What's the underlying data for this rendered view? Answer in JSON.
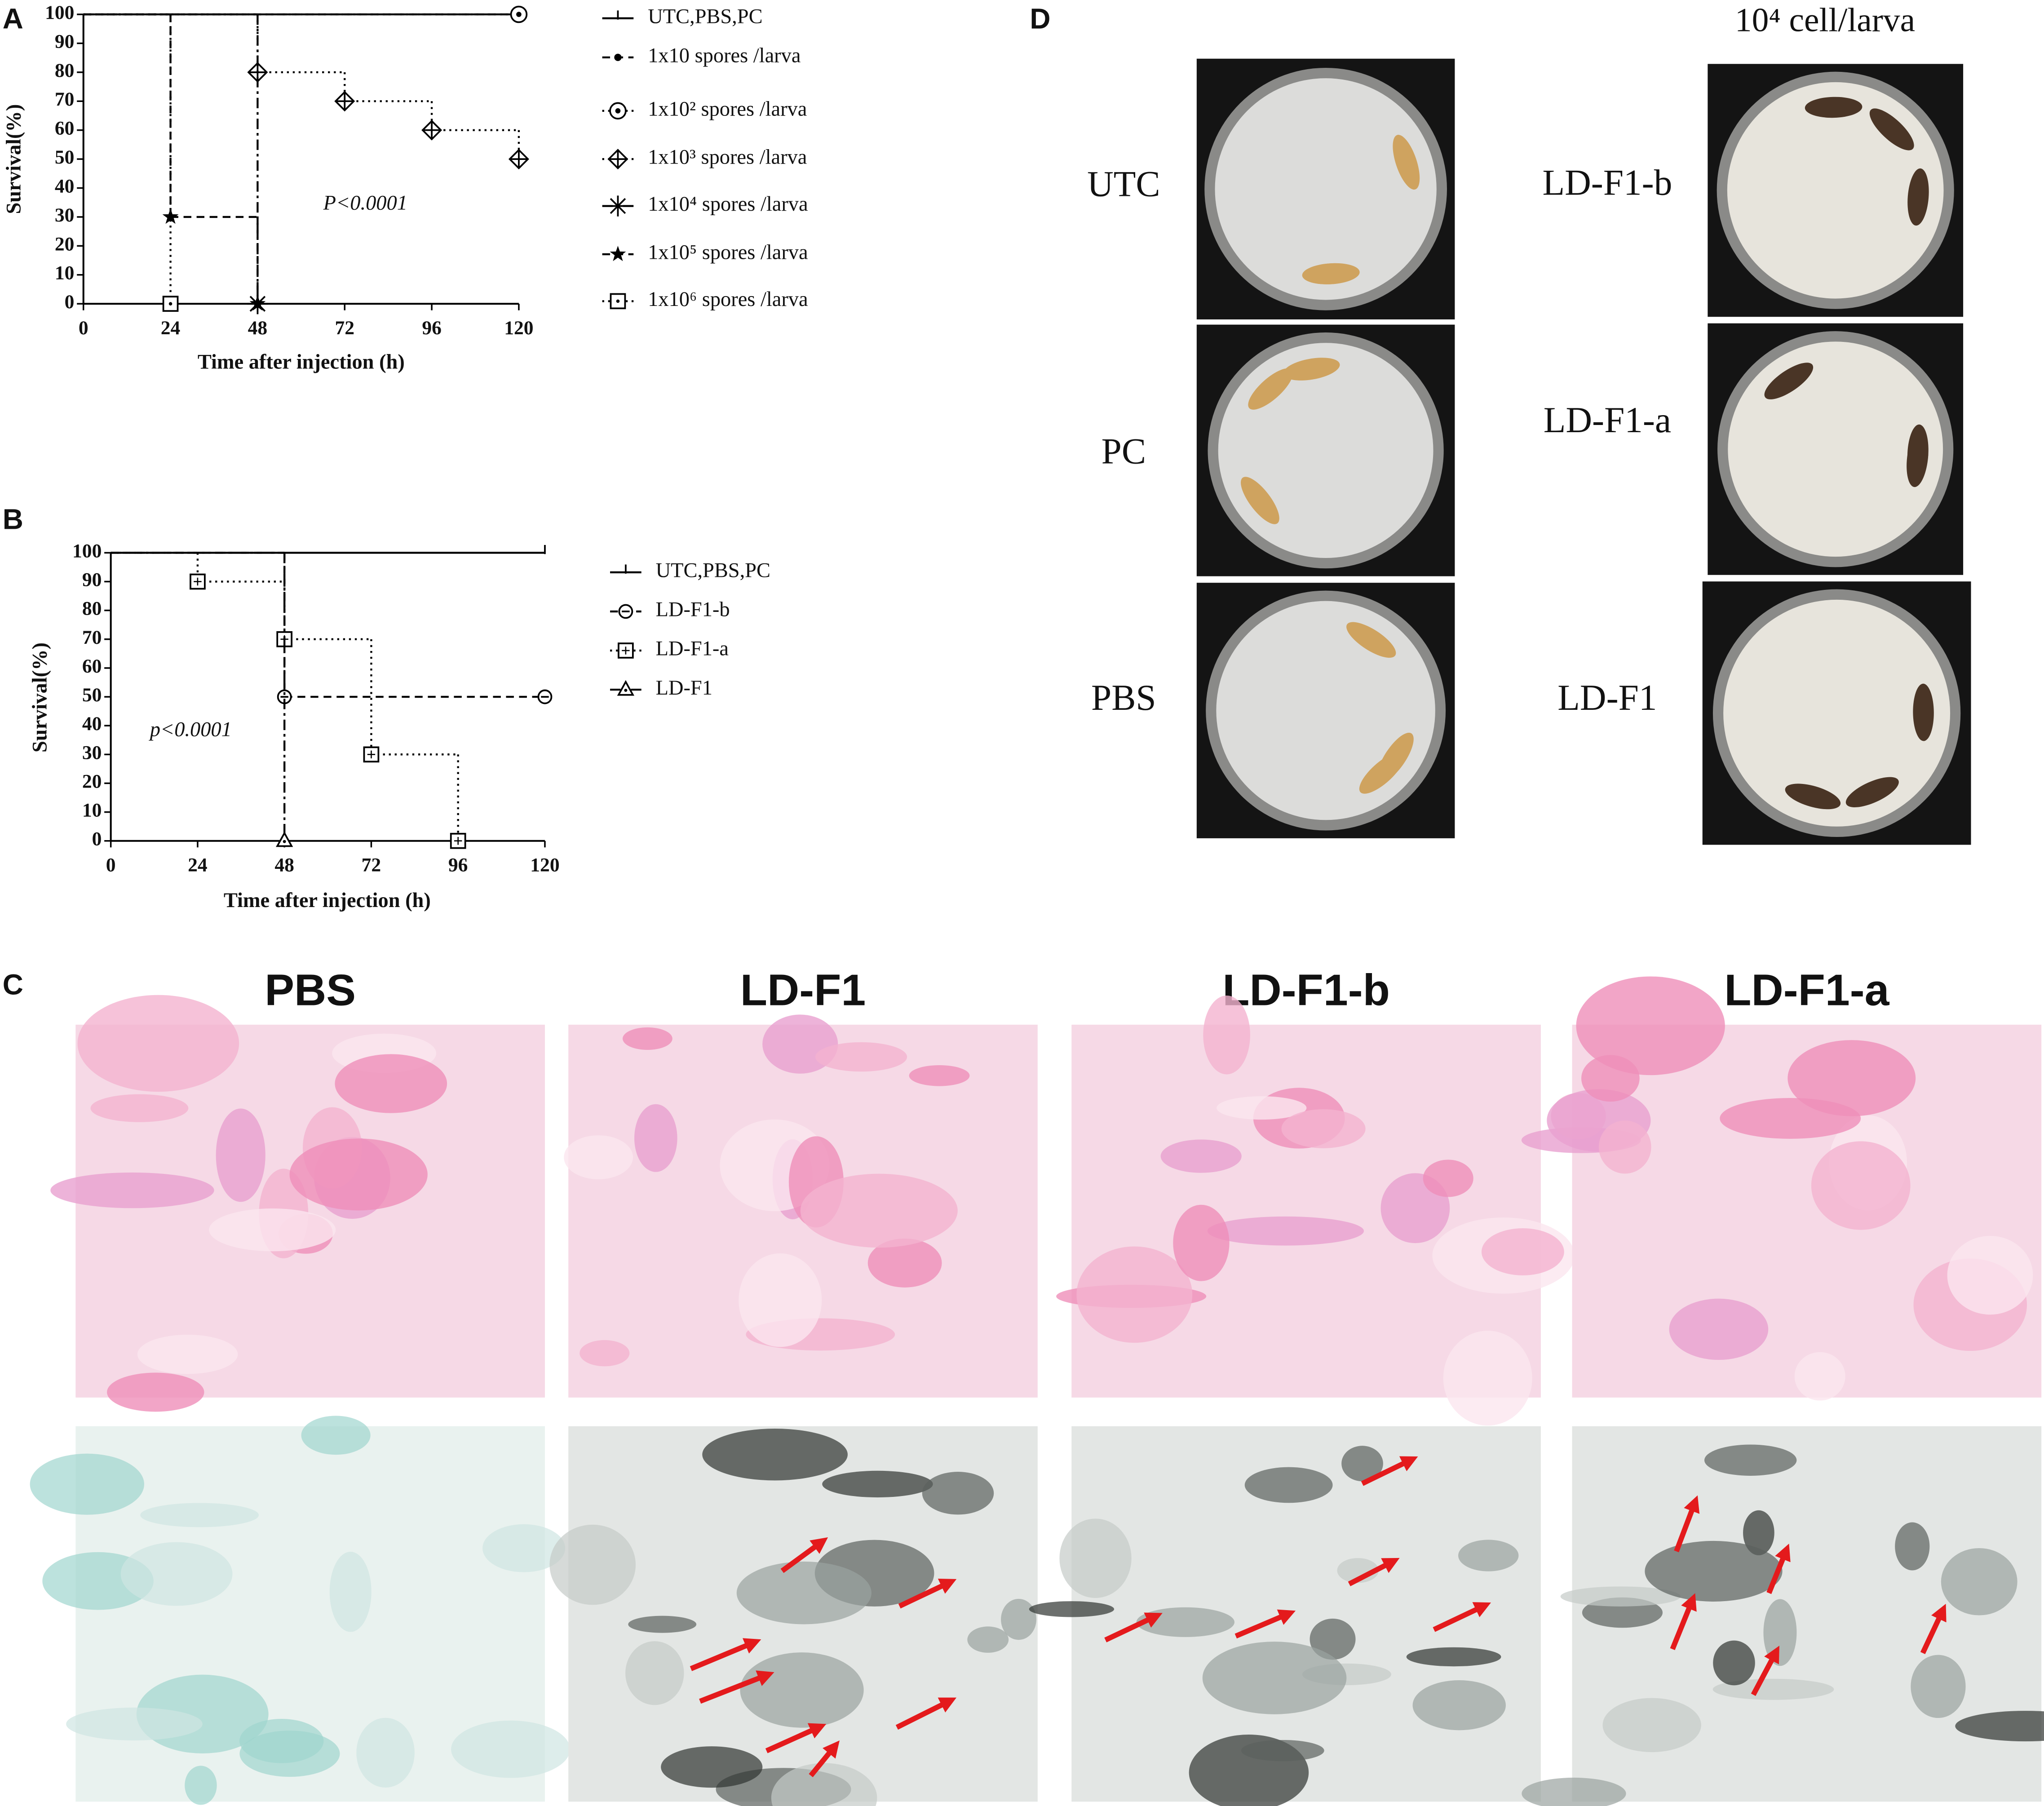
{
  "chart_data": [
    {
      "type": "step",
      "x_label": "Time after injection (h)",
      "y_label": "Survival(%)",
      "annotation": "P<0.0001",
      "xlim": [
        0,
        120
      ],
      "xticks": [
        0,
        24,
        48,
        72,
        96,
        120
      ],
      "ylim": [
        0,
        100
      ],
      "yticks": [
        0,
        10,
        20,
        30,
        40,
        50,
        60,
        70,
        80,
        90,
        100
      ],
      "series": [
        {
          "name": "UTC,PBS,PC",
          "color": "#000000",
          "dash": "solid",
          "marker": "tick",
          "x": [
            0,
            120
          ],
          "values": [
            100,
            100
          ]
        },
        {
          "name": "1x10 spores /larva",
          "color": "#000000",
          "dash": "dashed",
          "marker": "dot",
          "x": [
            0,
            120
          ],
          "values": [
            100,
            100
          ]
        },
        {
          "name": "1x10² spores /larva",
          "color": "#000000",
          "dash": "dotted",
          "marker": "circle-dot",
          "x": [
            0,
            120
          ],
          "values": [
            100,
            100
          ]
        },
        {
          "name": "1x10³ spores /larva",
          "color": "#000000",
          "dash": "dotted",
          "marker": "diamond-cross",
          "x": [
            0,
            48,
            72,
            96,
            120
          ],
          "values": [
            100,
            80,
            70,
            60,
            50
          ]
        },
        {
          "name": "1x10⁴ spores /larva",
          "color": "#000000",
          "dash": "dashdot",
          "marker": "asterisk",
          "x": [
            0,
            48
          ],
          "values": [
            100,
            0
          ]
        },
        {
          "name": "1x10⁵ spores /larva",
          "color": "#000000",
          "dash": "dashed",
          "marker": "star",
          "x": [
            0,
            24,
            48
          ],
          "values": [
            100,
            30,
            0
          ]
        },
        {
          "name": "1x10⁶ spores /larva",
          "color": "#000000",
          "dash": "dotted",
          "marker": "square-dot",
          "x": [
            0,
            24
          ],
          "values": [
            100,
            0
          ]
        }
      ]
    },
    {
      "type": "step",
      "x_label": "Time after injection (h)",
      "y_label": "Survival(%)",
      "annotation": "p<0.0001",
      "xlim": [
        0,
        120
      ],
      "xticks": [
        0,
        24,
        48,
        72,
        96,
        120
      ],
      "ylim": [
        0,
        100
      ],
      "yticks": [
        0,
        10,
        20,
        30,
        40,
        50,
        60,
        70,
        80,
        90,
        100
      ],
      "series": [
        {
          "name": "UTC,PBS,PC",
          "color": "#000000",
          "dash": "solid",
          "marker": "tick",
          "x": [
            0,
            120
          ],
          "values": [
            100,
            100
          ]
        },
        {
          "name": "LD-F1-b",
          "color": "#000000",
          "dash": "dashed",
          "marker": "circle-minus",
          "x": [
            0,
            48,
            120
          ],
          "values": [
            100,
            50,
            50
          ]
        },
        {
          "name": "LD-F1-a",
          "color": "#000000",
          "dash": "dotted",
          "marker": "square-plus",
          "x": [
            0,
            24,
            48,
            72,
            96
          ],
          "values": [
            100,
            90,
            70,
            30,
            0
          ]
        },
        {
          "name": "LD-F1",
          "color": "#000000",
          "dash": "dashdot",
          "marker": "triangle",
          "x": [
            0,
            48
          ],
          "values": [
            100,
            0
          ]
        }
      ]
    }
  ],
  "figure": {
    "panel_labels": [
      "A",
      "B",
      "C",
      "D"
    ],
    "panel_c": {
      "columns": [
        "PBS",
        "LD-F1",
        "LD-F1-b",
        "LD-F1-a"
      ]
    },
    "panel_d": {
      "heading": "10⁴ cell/larva",
      "left_rows": [
        "UTC",
        "PC",
        "PBS"
      ],
      "right_rows": [
        "LD-F1-b",
        "LD-F1-a",
        "LD-F1"
      ]
    }
  }
}
